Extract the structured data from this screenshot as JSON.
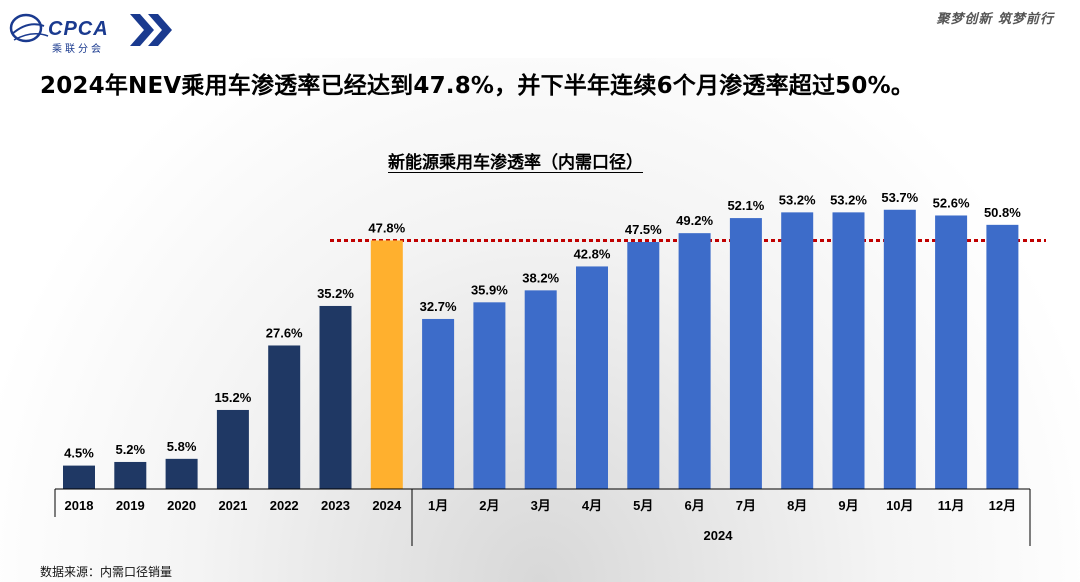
{
  "header": {
    "logo_text": "CPCA",
    "logo_sub": "乘联分会",
    "slogan": "聚梦创新 筑梦前行"
  },
  "page_title": "2024年NEV乘用车渗透率已经达到47.8%，并下半年连续6个月渗透率超过50%。",
  "source": "数据来源：内需口径销量",
  "colors": {
    "annual": "#1f3864",
    "highlight": "#ffb02e",
    "monthly": "#3d6cc9",
    "reference_line": "#c00000"
  },
  "chart_data": {
    "type": "bar",
    "title": "新能源乘用车渗透率（内需口径）",
    "categories": [
      "2018",
      "2019",
      "2020",
      "2021",
      "2022",
      "2023",
      "2024",
      "1月",
      "2月",
      "3月",
      "4月",
      "5月",
      "6月",
      "7月",
      "8月",
      "9月",
      "10月",
      "11月",
      "12月"
    ],
    "values": [
      4.5,
      5.2,
      5.8,
      15.2,
      27.6,
      35.2,
      47.8,
      32.7,
      35.9,
      38.2,
      42.8,
      47.5,
      49.2,
      52.1,
      53.2,
      53.2,
      53.7,
      52.6,
      50.8
    ],
    "value_labels": [
      "4.5%",
      "5.2%",
      "5.8%",
      "15.2%",
      "27.6%",
      "35.2%",
      "47.8%",
      "32.7%",
      "35.9%",
      "38.2%",
      "42.8%",
      "47.5%",
      "49.2%",
      "52.1%",
      "53.2%",
      "53.2%",
      "53.7%",
      "52.6%",
      "50.8%"
    ],
    "group_label": "2024",
    "reference_value": 47.8,
    "ylim": [
      0,
      56
    ],
    "grid": false,
    "legend": "none"
  }
}
